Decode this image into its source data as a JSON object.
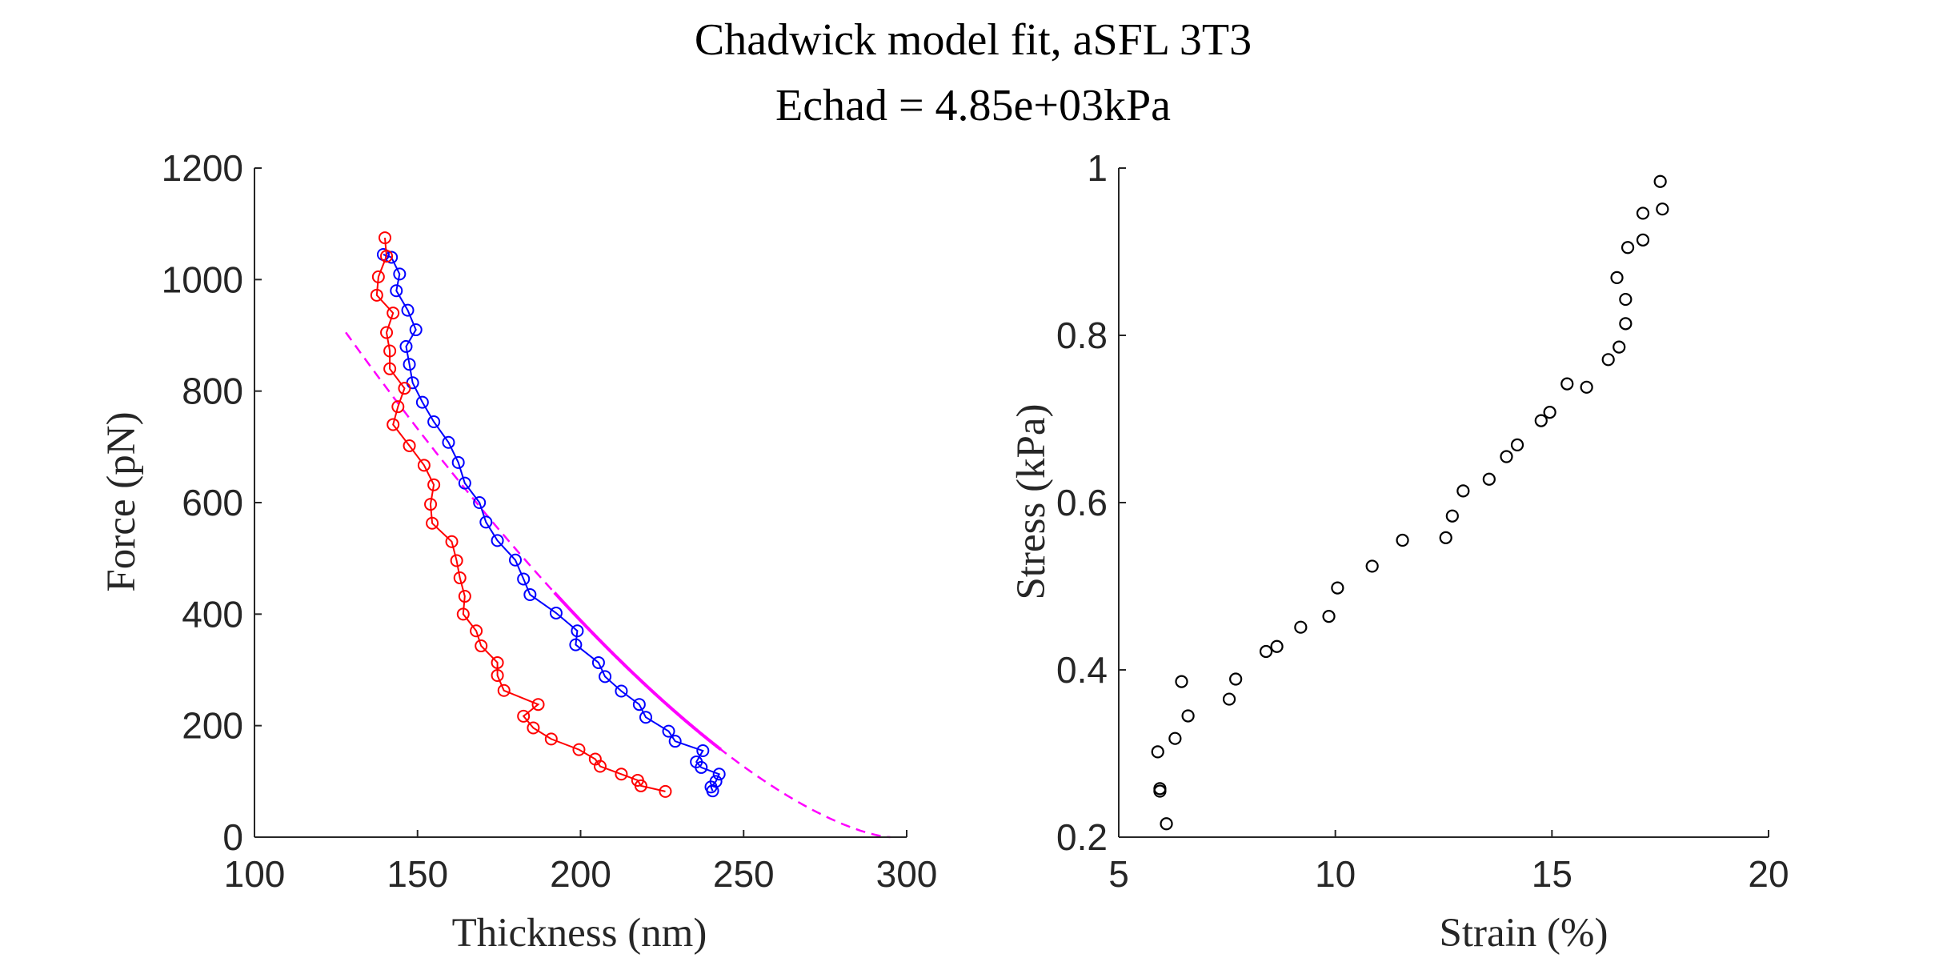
{
  "figure": {
    "title_line1": "Chadwick model fit, aSFL 3T3",
    "title_line2": "Echad = 4.85e+03kPa"
  },
  "chart_data": [
    {
      "type": "line",
      "xlabel": "Thickness (nm)",
      "ylabel": "Force (pN)",
      "xlim": [
        100,
        300
      ],
      "ylim": [
        0,
        1200
      ],
      "xticks": [
        "100",
        "150",
        "200",
        "250",
        "300"
      ],
      "yticks": [
        "0",
        "200",
        "400",
        "600",
        "800",
        "1000",
        "1200"
      ],
      "grid": false,
      "colors": {
        "approach": "#0000ff",
        "retract": "#ff0000",
        "fit": "#ff00ff",
        "axis": "#262626"
      },
      "series": [
        {
          "key": "approach",
          "marker": "circle",
          "points": [
            [
              139.5,
              1045
            ],
            [
              142,
              1040
            ],
            [
              144.5,
              1010
            ],
            [
              143.5,
              980
            ],
            [
              147,
              945
            ],
            [
              149.5,
              910
            ],
            [
              146.5,
              880
            ],
            [
              147.5,
              848
            ],
            [
              148.5,
              815
            ],
            [
              151.5,
              780
            ],
            [
              155,
              745
            ],
            [
              159.5,
              708
            ],
            [
              162.5,
              672
            ],
            [
              164.5,
              635
            ],
            [
              169,
              600
            ],
            [
              171,
              565
            ],
            [
              174.5,
              532
            ],
            [
              180,
              497
            ],
            [
              182.5,
              463
            ],
            [
              184.5,
              435
            ],
            [
              192.5,
              402
            ],
            [
              199,
              370
            ],
            [
              198.5,
              345
            ],
            [
              205.5,
              313
            ],
            [
              207.5,
              288
            ],
            [
              212.5,
              262
            ],
            [
              218,
              238
            ],
            [
              220,
              215
            ],
            [
              227,
              190
            ],
            [
              229,
              172
            ],
            [
              237.5,
              155
            ],
            [
              235.5,
              135
            ],
            [
              237,
              125
            ],
            [
              242.5,
              113
            ],
            [
              241.5,
              100
            ],
            [
              240,
              90
            ],
            [
              240.5,
              83
            ]
          ]
        },
        {
          "key": "retract",
          "marker": "circle",
          "points": [
            [
              140,
              1075
            ],
            [
              140.5,
              1042
            ],
            [
              138,
              1005
            ],
            [
              137.5,
              972
            ],
            [
              142.5,
              940
            ],
            [
              140.5,
              905
            ],
            [
              141.5,
              872
            ],
            [
              141.5,
              840
            ],
            [
              146,
              805
            ],
            [
              144,
              772
            ],
            [
              142.5,
              740
            ],
            [
              147.5,
              702
            ],
            [
              152,
              667
            ],
            [
              155,
              632
            ],
            [
              154,
              597
            ],
            [
              154.5,
              563
            ],
            [
              160.5,
              530
            ],
            [
              162,
              496
            ],
            [
              163,
              465
            ],
            [
              164.5,
              432
            ],
            [
              164,
              400
            ],
            [
              168,
              370
            ],
            [
              169.5,
              343
            ],
            [
              174.5,
              313
            ],
            [
              174.5,
              290
            ],
            [
              176.5,
              263
            ],
            [
              187,
              238
            ],
            [
              182.5,
              217
            ],
            [
              185.5,
              196
            ],
            [
              191,
              176
            ],
            [
              199.5,
              157
            ],
            [
              204.5,
              140
            ],
            [
              206,
              127
            ],
            [
              212.5,
              113
            ],
            [
              217.5,
              102
            ],
            [
              218.5,
              92
            ],
            [
              226,
              82
            ]
          ]
        },
        {
          "key": "fit",
          "style": "dashed",
          "function": "force = k*(t0 - thickness)^1.5",
          "t0": 295,
          "k": 0.4195,
          "x_range": [
            128,
            295
          ]
        },
        {
          "key": "fit_solid_overlay",
          "style": "solid",
          "x_range": [
            192,
            243
          ]
        }
      ]
    },
    {
      "type": "scatter",
      "xlabel": "Strain (%)",
      "ylabel": "Stress (kPa)",
      "xlim": [
        5,
        20
      ],
      "ylim": [
        0.2,
        1
      ],
      "xticks": [
        "5",
        "10",
        "15",
        "20"
      ],
      "yticks": [
        "0.2",
        "0.4",
        "0.6",
        "0.8",
        "1"
      ],
      "grid": false,
      "colors": {
        "points": "#000000",
        "axis": "#262626"
      },
      "points": [
        [
          6.1,
          0.216
        ],
        [
          5.95,
          0.255
        ],
        [
          5.95,
          0.258
        ],
        [
          5.9,
          0.302
        ],
        [
          6.3,
          0.318
        ],
        [
          6.6,
          0.345
        ],
        [
          6.45,
          0.386
        ],
        [
          7.55,
          0.365
        ],
        [
          7.7,
          0.389
        ],
        [
          8.4,
          0.422
        ],
        [
          8.65,
          0.428
        ],
        [
          9.2,
          0.451
        ],
        [
          9.85,
          0.464
        ],
        [
          10.05,
          0.498
        ],
        [
          10.85,
          0.524
        ],
        [
          11.55,
          0.555
        ],
        [
          12.55,
          0.558
        ],
        [
          12.7,
          0.584
        ],
        [
          12.95,
          0.614
        ],
        [
          13.55,
          0.628
        ],
        [
          13.95,
          0.655
        ],
        [
          14.2,
          0.669
        ],
        [
          14.75,
          0.698
        ],
        [
          14.95,
          0.708
        ],
        [
          15.35,
          0.742
        ],
        [
          15.8,
          0.738
        ],
        [
          16.3,
          0.771
        ],
        [
          16.55,
          0.786
        ],
        [
          16.7,
          0.814
        ],
        [
          16.7,
          0.843
        ],
        [
          16.5,
          0.869
        ],
        [
          16.75,
          0.905
        ],
        [
          17.1,
          0.914
        ],
        [
          17.1,
          0.946
        ],
        [
          17.55,
          0.951
        ],
        [
          17.5,
          0.984
        ]
      ]
    }
  ]
}
